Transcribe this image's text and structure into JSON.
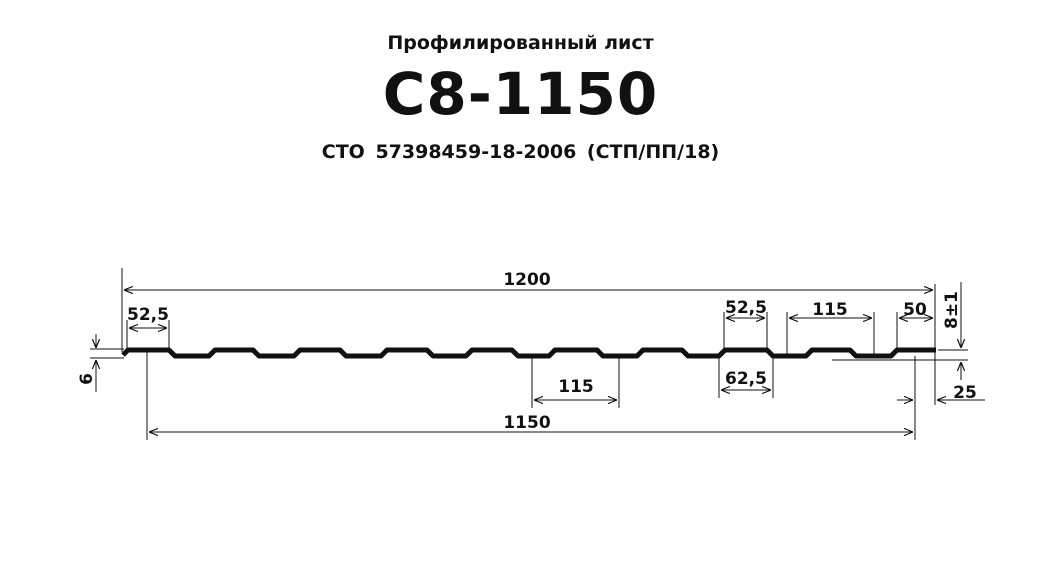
{
  "header": {
    "subtitle": "Профилированный  лист",
    "title": "С8-1150",
    "standard": "СТО  57398459-18-2006  (СТП/ПП/18)"
  },
  "dimensions": {
    "overall_width": "1200",
    "useful_width": "1150",
    "rib_top_left": "52,5",
    "rib_top_right": "52,5",
    "rib_bottom": "62,5",
    "pitch_bottom": "115",
    "pitch_top": "115",
    "edge_flat": "50",
    "height": "8±1",
    "overlap_offset": "25",
    "left_height": "6"
  }
}
